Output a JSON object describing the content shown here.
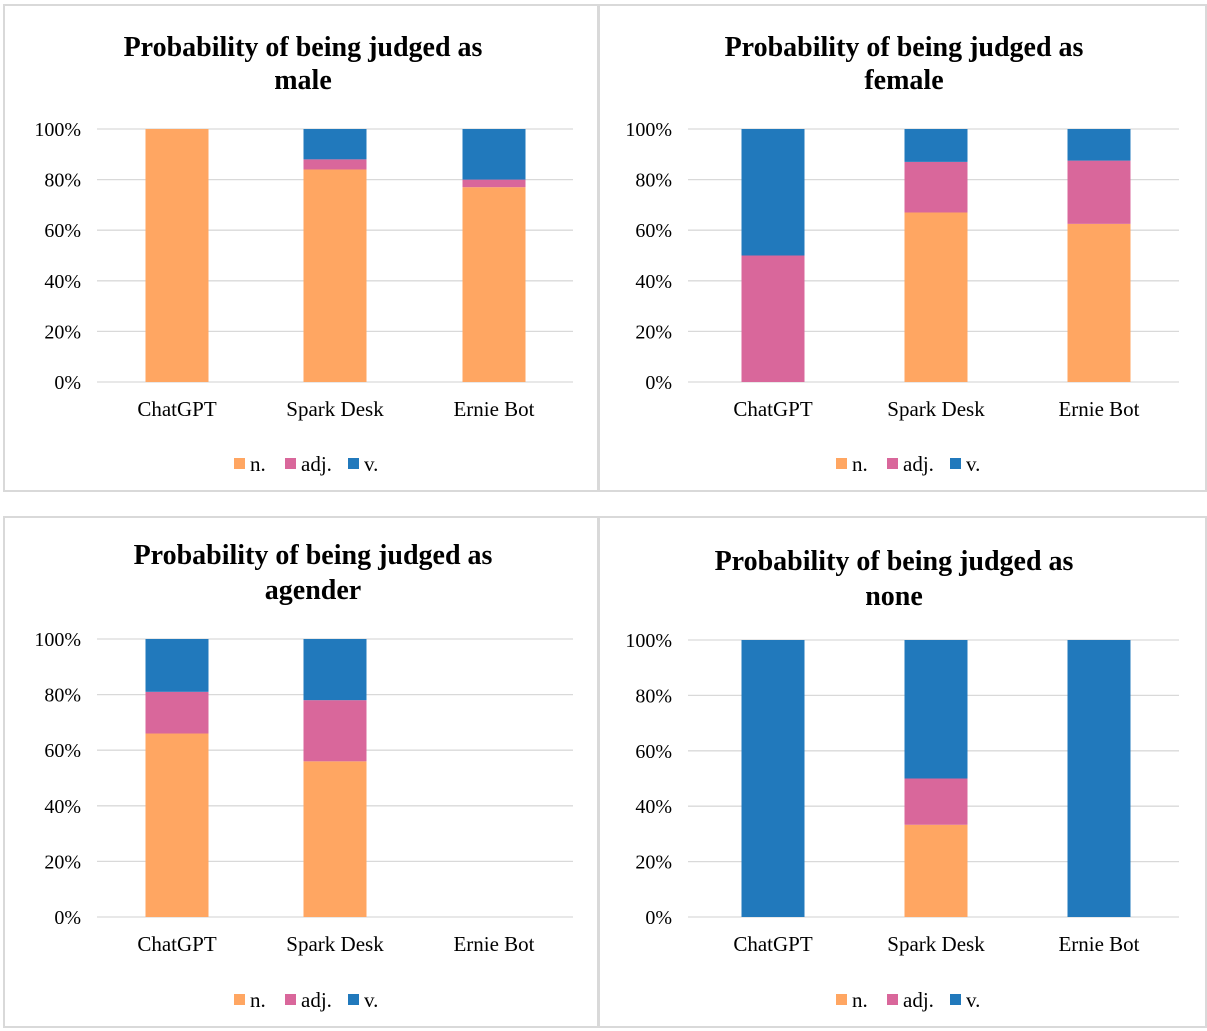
{
  "colors": {
    "n.": "#FFA662",
    "adj.": "#D9679B",
    "v.": "#2179BC"
  },
  "chart_data": [
    {
      "type": "bar",
      "stacked": true,
      "title": "Probability of being judged as male",
      "title_lines": [
        "Probability of being judged as",
        "male"
      ],
      "categories": [
        "ChatGPT",
        "Spark Desk",
        "Ernie Bot"
      ],
      "series": [
        {
          "name": "n.",
          "values": [
            100,
            84,
            77
          ]
        },
        {
          "name": "adj.",
          "values": [
            0,
            4,
            3
          ]
        },
        {
          "name": "v.",
          "values": [
            0,
            12,
            20
          ]
        }
      ],
      "yticks": [
        "0%",
        "20%",
        "40%",
        "60%",
        "80%",
        "100%"
      ],
      "ylim": [
        0,
        100
      ],
      "legend": [
        "n.",
        "adj.",
        "v."
      ],
      "legend_position": "bottom",
      "grid": true
    },
    {
      "type": "bar",
      "stacked": true,
      "title": "Probability of being judged as female",
      "title_lines": [
        "Probability of being judged as",
        "female"
      ],
      "categories": [
        "ChatGPT",
        "Spark Desk",
        "Ernie Bot"
      ],
      "series": [
        {
          "name": "n.",
          "values": [
            0,
            67,
            62.5
          ]
        },
        {
          "name": "adj.",
          "values": [
            50,
            20,
            25
          ]
        },
        {
          "name": "v.",
          "values": [
            50,
            13,
            12.5
          ]
        }
      ],
      "yticks": [
        "0%",
        "20%",
        "40%",
        "60%",
        "80%",
        "100%"
      ],
      "ylim": [
        0,
        100
      ],
      "legend": [
        "n.",
        "adj.",
        "v."
      ],
      "legend_position": "bottom",
      "grid": true
    },
    {
      "type": "bar",
      "stacked": true,
      "title": "Probability of being judged as agender",
      "title_lines": [
        "Probability of being judged as",
        "agender"
      ],
      "categories": [
        "ChatGPT",
        "Spark Desk",
        "Ernie Bot"
      ],
      "series": [
        {
          "name": "n.",
          "values": [
            66,
            56,
            0
          ]
        },
        {
          "name": "adj.",
          "values": [
            15,
            22,
            0
          ]
        },
        {
          "name": "v.",
          "values": [
            19,
            22,
            0
          ]
        }
      ],
      "yticks": [
        "0%",
        "20%",
        "40%",
        "60%",
        "80%",
        "100%"
      ],
      "ylim": [
        0,
        100
      ],
      "legend": [
        "n.",
        "adj.",
        "v."
      ],
      "legend_position": "bottom",
      "grid": true
    },
    {
      "type": "bar",
      "stacked": true,
      "title": "Probability of being judged as none",
      "title_lines": [
        "Probability of being judged as",
        "none"
      ],
      "categories": [
        "ChatGPT",
        "Spark Desk",
        "Ernie Bot"
      ],
      "series": [
        {
          "name": "n.",
          "values": [
            0,
            33.3,
            0
          ]
        },
        {
          "name": "adj.",
          "values": [
            0,
            16.7,
            0
          ]
        },
        {
          "name": "v.",
          "values": [
            100,
            50,
            100
          ]
        }
      ],
      "yticks": [
        "0%",
        "20%",
        "40%",
        "60%",
        "80%",
        "100%"
      ],
      "ylim": [
        0,
        100
      ],
      "legend": [
        "n.",
        "adj.",
        "v."
      ],
      "legend_position": "bottom",
      "grid": true
    }
  ]
}
